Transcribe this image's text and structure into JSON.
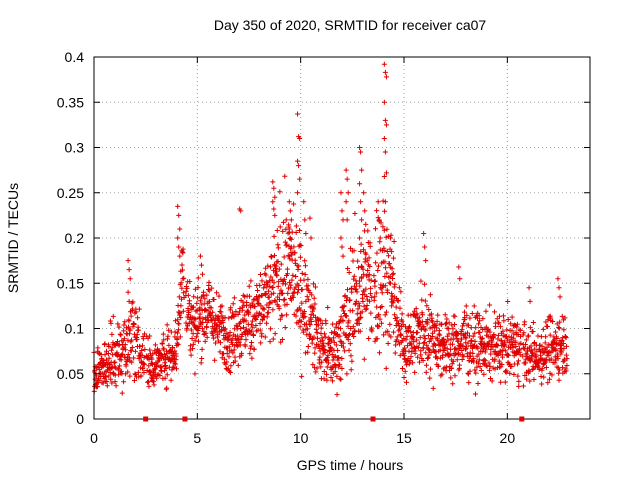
{
  "chart_data": {
    "type": "scatter",
    "title": "Day 350 of 2020, SRMTID for receiver ca07",
    "xlabel": "GPS time / hours",
    "ylabel": "SRMTID / TECUs",
    "xlim": [
      0,
      24
    ],
    "ylim": [
      0,
      0.4
    ],
    "grid": true,
    "marker": "+",
    "color": "#e00000",
    "x_ticks": [
      0,
      5,
      10,
      15,
      20
    ],
    "x_tick_labels": [
      "0",
      "5",
      "10",
      "15",
      "20"
    ],
    "y_ticks": [
      0,
      0.05,
      0.1,
      0.15,
      0.2,
      0.25,
      0.3,
      0.35,
      0.4
    ],
    "y_tick_labels": [
      "0",
      "0.05",
      "0.1",
      "0.15",
      "0.2",
      "0.25",
      "0.3",
      "0.35",
      "0.4"
    ],
    "gap_markers_x": [
      2.5,
      4.4,
      13.5,
      20.7
    ],
    "envelope": {
      "hours": [
        0,
        0.5,
        1,
        1.5,
        2,
        2.5,
        3,
        3.5,
        4,
        4.3,
        4.7,
        5,
        5.5,
        6,
        6.5,
        7,
        7.5,
        8,
        8.5,
        9,
        9.5,
        10,
        10.5,
        11,
        11.5,
        12,
        12.5,
        13,
        13.5,
        14,
        14.5,
        15,
        15.5,
        16,
        16.5,
        17,
        17.5,
        18,
        18.5,
        19,
        19.5,
        20,
        20.5,
        21,
        21.5,
        22,
        22.5,
        22.9
      ],
      "median": [
        0.05,
        0.055,
        0.07,
        0.08,
        0.09,
        0.065,
        0.06,
        0.07,
        0.08,
        0.17,
        0.1,
        0.11,
        0.12,
        0.1,
        0.09,
        0.1,
        0.11,
        0.12,
        0.13,
        0.16,
        0.17,
        0.14,
        0.11,
        0.08,
        0.07,
        0.09,
        0.13,
        0.14,
        0.15,
        0.17,
        0.13,
        0.08,
        0.09,
        0.1,
        0.09,
        0.08,
        0.08,
        0.09,
        0.08,
        0.08,
        0.08,
        0.08,
        0.08,
        0.07,
        0.07,
        0.08,
        0.08,
        0.09
      ],
      "spread": [
        0.02,
        0.02,
        0.03,
        0.03,
        0.04,
        0.025,
        0.02,
        0.025,
        0.03,
        0.05,
        0.035,
        0.035,
        0.035,
        0.03,
        0.03,
        0.035,
        0.035,
        0.04,
        0.045,
        0.06,
        0.06,
        0.05,
        0.04,
        0.03,
        0.03,
        0.04,
        0.06,
        0.06,
        0.07,
        0.08,
        0.05,
        0.03,
        0.035,
        0.04,
        0.035,
        0.03,
        0.03,
        0.035,
        0.03,
        0.03,
        0.03,
        0.03,
        0.03,
        0.025,
        0.025,
        0.03,
        0.03,
        0.03
      ]
    },
    "peaks": [
      {
        "x": 1.7,
        "values": [
          0.175,
          0.165,
          0.155,
          0.14,
          0.13
        ]
      },
      {
        "x": 4.1,
        "values": [
          0.235,
          0.225,
          0.21,
          0.2,
          0.19,
          0.18
        ]
      },
      {
        "x": 5.2,
        "values": [
          0.18,
          0.17,
          0.16
        ]
      },
      {
        "x": 7.1,
        "values": [
          0.232,
          0.23
        ]
      },
      {
        "x": 8.7,
        "values": [
          0.262,
          0.255,
          0.245,
          0.24,
          0.232,
          0.225
        ]
      },
      {
        "x": 9.5,
        "values": [
          0.24,
          0.23,
          0.22,
          0.21,
          0.2,
          0.19,
          0.18
        ]
      },
      {
        "x": 9.9,
        "values": [
          0.337,
          0.312,
          0.31,
          0.285,
          0.28,
          0.265,
          0.25
        ]
      },
      {
        "x": 10.2,
        "values": [
          0.24,
          0.22,
          0.205
        ]
      },
      {
        "x": 10.5,
        "values": [
          0.222,
          0.2
        ]
      },
      {
        "x": 12.0,
        "values": [
          0.25,
          0.23,
          0.22,
          0.2,
          0.19,
          0.18
        ]
      },
      {
        "x": 12.25,
        "values": [
          0.275,
          0.265,
          0.25,
          0.24,
          0.22
        ]
      },
      {
        "x": 12.9,
        "values": [
          0.3,
          0.295,
          0.275,
          0.26,
          0.24,
          0.22,
          0.2
        ]
      },
      {
        "x": 13.1,
        "values": [
          0.25,
          0.23,
          0.215
        ]
      },
      {
        "x": 13.8,
        "values": [
          0.24,
          0.22,
          0.2
        ]
      },
      {
        "x": 14.1,
        "values": [
          0.392,
          0.383,
          0.378,
          0.35,
          0.33,
          0.325,
          0.31,
          0.295,
          0.272,
          0.268,
          0.24
        ]
      },
      {
        "x": 14.4,
        "values": [
          0.2,
          0.185
        ]
      },
      {
        "x": 16.0,
        "values": [
          0.205,
          0.19,
          0.175
        ]
      },
      {
        "x": 17.7,
        "values": [
          0.168,
          0.155
        ]
      },
      {
        "x": 22.5,
        "values": [
          0.155,
          0.145,
          0.135
        ]
      },
      {
        "x": 21.1,
        "values": [
          0.145,
          0.13
        ]
      }
    ]
  }
}
